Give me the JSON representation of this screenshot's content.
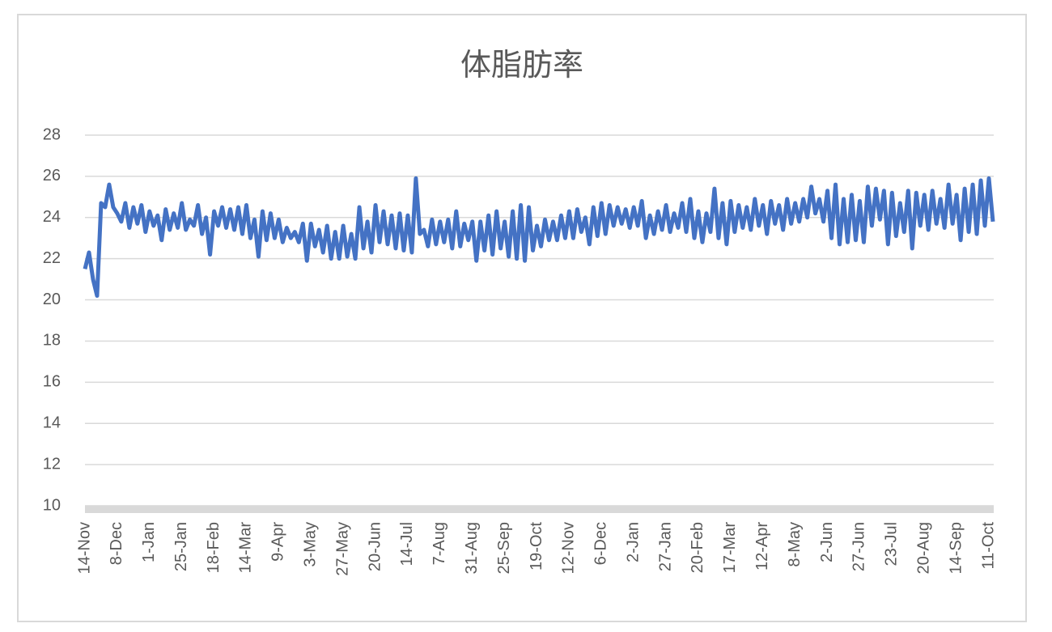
{
  "chart_data": {
    "type": "line",
    "title": "体脂肪率",
    "categories": [
      "14-Nov",
      null,
      null,
      null,
      null,
      null,
      null,
      null,
      "8-Dec",
      null,
      null,
      null,
      null,
      null,
      null,
      null,
      "1-Jan",
      null,
      null,
      null,
      null,
      null,
      null,
      null,
      "25-Jan",
      null,
      null,
      null,
      null,
      null,
      null,
      null,
      "18-Feb",
      null,
      null,
      null,
      null,
      null,
      null,
      null,
      "14-Mar",
      null,
      null,
      null,
      null,
      null,
      null,
      null,
      "9-Apr",
      null,
      null,
      null,
      null,
      null,
      null,
      null,
      "3-May",
      null,
      null,
      null,
      null,
      null,
      null,
      null,
      "27-May",
      null,
      null,
      null,
      null,
      null,
      null,
      null,
      "20-Jun",
      null,
      null,
      null,
      null,
      null,
      null,
      null,
      "14-Jul",
      null,
      null,
      null,
      null,
      null,
      null,
      null,
      "7-Aug",
      null,
      null,
      null,
      null,
      null,
      null,
      null,
      "31-Aug",
      null,
      null,
      null,
      null,
      null,
      null,
      null,
      "25-Sep",
      null,
      null,
      null,
      null,
      null,
      null,
      null,
      "19-Oct",
      null,
      null,
      null,
      null,
      null,
      null,
      null,
      "12-Nov",
      null,
      null,
      null,
      null,
      null,
      null,
      null,
      "6-Dec",
      null,
      null,
      null,
      null,
      null,
      null,
      null,
      "2-Jan",
      null,
      null,
      null,
      null,
      null,
      null,
      null,
      "27-Jan",
      null,
      null,
      null,
      null,
      null,
      null,
      null,
      "20-Feb",
      null,
      null,
      null,
      null,
      null,
      null,
      null,
      "17-Mar",
      null,
      null,
      null,
      null,
      null,
      null,
      null,
      "12-Apr",
      null,
      null,
      null,
      null,
      null,
      null,
      null,
      "8-May",
      null,
      null,
      null,
      null,
      null,
      null,
      null,
      "2-Jun",
      null,
      null,
      null,
      null,
      null,
      null,
      null,
      "27-Jun",
      null,
      null,
      null,
      null,
      null,
      null,
      null,
      "23-Jul",
      null,
      null,
      null,
      null,
      null,
      null,
      null,
      "20-Aug",
      null,
      null,
      null,
      null,
      null,
      null,
      null,
      "14-Sep",
      null,
      null,
      null,
      null,
      null,
      null,
      null,
      "11-Oct",
      null
    ],
    "series": [
      {
        "color": "#4472c4",
        "values": [
          21.5,
          22.3,
          21,
          20.2,
          24.7,
          24.5,
          25.6,
          24.5,
          24.2,
          23.8,
          24.7,
          23.5,
          24.5,
          23.7,
          24.6,
          23.3,
          24.3,
          23.6,
          24.1,
          22.9,
          24.4,
          23.4,
          24.2,
          23.5,
          24.7,
          23.4,
          23.9,
          23.6,
          24.6,
          23.2,
          24.0,
          22.2,
          24.3,
          23.6,
          24.5,
          23.5,
          24.4,
          23.4,
          24.5,
          23.2,
          24.6,
          23.0,
          23.9,
          22.1,
          24.3,
          22.9,
          24.2,
          23.0,
          23.9,
          22.8,
          23.5,
          23.0,
          23.3,
          22.8,
          23.7,
          21.9,
          23.7,
          22.6,
          23.4,
          22.3,
          23.6,
          22.0,
          23.3,
          22.0,
          23.6,
          22.1,
          23.2,
          22.0,
          24.5,
          22.5,
          23.8,
          22.3,
          24.6,
          22.8,
          24.3,
          22.7,
          24.1,
          22.5,
          24.2,
          22.4,
          24.1,
          22.3,
          25.9,
          23.2,
          23.4,
          22.6,
          23.9,
          22.7,
          23.8,
          22.8,
          23.9,
          22.5,
          24.3,
          22.6,
          23.7,
          22.9,
          23.8,
          21.9,
          23.8,
          22.4,
          24.1,
          22.2,
          24.3,
          22.5,
          23.8,
          22.1,
          24.3,
          22.0,
          24.6,
          21.9,
          24.5,
          22.4,
          23.6,
          22.6,
          23.9,
          22.9,
          23.8,
          22.9,
          24.1,
          23.0,
          24.3,
          23.0,
          24.4,
          23.3,
          24.0,
          22.7,
          24.5,
          23.1,
          24.7,
          23.2,
          24.6,
          23.6,
          24.5,
          23.7,
          24.4,
          23.5,
          24.5,
          23.6,
          24.8,
          23.0,
          24.1,
          23.2,
          24.3,
          23.4,
          24.6,
          23.3,
          24.2,
          23.5,
          24.7,
          23.3,
          24.9,
          23.0,
          24.3,
          22.8,
          24.2,
          23.3,
          25.4,
          23.0,
          24.7,
          22.7,
          24.8,
          23.3,
          24.6,
          23.5,
          24.5,
          23.4,
          24.9,
          23.6,
          24.6,
          23.2,
          24.8,
          23.7,
          24.6,
          23.4,
          24.9,
          23.7,
          24.7,
          23.8,
          24.9,
          24.0,
          25.5,
          24.2,
          24.9,
          23.8,
          25.3,
          23.0,
          25.6,
          22.7,
          24.9,
          22.8,
          25.1,
          22.9,
          24.8,
          22.8,
          25.5,
          23.6,
          25.4,
          23.9,
          25.3,
          22.7,
          25.2,
          23.1,
          24.7,
          23.3,
          25.3,
          22.5,
          25.2,
          23.6,
          25.1,
          23.4,
          25.3,
          23.7,
          24.9,
          23.5,
          25.6,
          23.7,
          25.1,
          22.9,
          25.4,
          23.3,
          25.6,
          23.2,
          25.8,
          23.6,
          25.9,
          23.8
        ]
      }
    ],
    "ylim": [
      10,
      28
    ],
    "yticks": [
      10,
      12,
      14,
      16,
      18,
      20,
      22,
      24,
      26,
      28
    ],
    "grid": true
  }
}
